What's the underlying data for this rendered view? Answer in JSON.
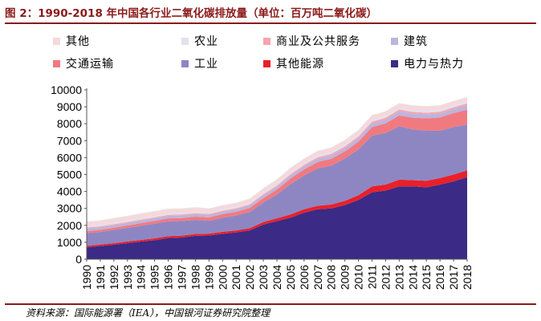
{
  "title": "图 2：1990-2018 年中国各行业二氧化碳排放量（单位：百万吨二氧化碳）",
  "source": "资料来源：国际能源署（IEA），中国银河证券研究院整理",
  "colors": {
    "other": "#f7d7da",
    "agriculture": "#e1e1ef",
    "commercial": "#f6a5ad",
    "building": "#bdb4dc",
    "transport": "#f07a80",
    "industry": "#8e86c3",
    "other_energy": "#e8202a",
    "power_heat": "#3b2a86"
  },
  "legend": [
    {
      "key": "other",
      "label": "其他"
    },
    {
      "key": "agriculture",
      "label": "农业"
    },
    {
      "key": "commercial",
      "label": "商业及公共服务"
    },
    {
      "key": "building",
      "label": "建筑"
    },
    {
      "key": "transport",
      "label": "交通运输"
    },
    {
      "key": "industry",
      "label": "工业"
    },
    {
      "key": "other_energy",
      "label": "其他能源"
    },
    {
      "key": "power_heat",
      "label": "电力与热力"
    }
  ],
  "chart_data": {
    "type": "area",
    "stacked": true,
    "title": "",
    "xlabel": "",
    "ylabel": "",
    "ylim": [
      0,
      10000
    ],
    "yticks": [
      0,
      1000,
      2000,
      3000,
      4000,
      5000,
      6000,
      7000,
      8000,
      9000,
      10000
    ],
    "x": [
      "1990",
      "1991",
      "1992",
      "1993",
      "1994",
      "1995",
      "1996",
      "1997",
      "1998",
      "1999",
      "2000",
      "2001",
      "2002",
      "2003",
      "2004",
      "2005",
      "2006",
      "2007",
      "2008",
      "2009",
      "2010",
      "2011",
      "2012",
      "2013",
      "2014",
      "2015",
      "2016",
      "2017",
      "2018"
    ],
    "series": [
      {
        "key": "power_heat",
        "name": "电力与热力",
        "values": [
          700,
          780,
          860,
          950,
          1040,
          1120,
          1250,
          1280,
          1380,
          1400,
          1500,
          1580,
          1700,
          2050,
          2250,
          2450,
          2750,
          2950,
          3000,
          3200,
          3500,
          3950,
          4050,
          4300,
          4300,
          4250,
          4400,
          4600,
          4850
        ]
      },
      {
        "key": "other_energy",
        "name": "其他能源",
        "values": [
          90,
          90,
          90,
          100,
          100,
          110,
          110,
          110,
          110,
          110,
          120,
          120,
          130,
          150,
          170,
          190,
          200,
          210,
          230,
          250,
          280,
          350,
          360,
          400,
          370,
          380,
          390,
          400,
          400
        ]
      },
      {
        "key": "industry",
        "name": "工业",
        "values": [
          750,
          740,
          780,
          800,
          840,
          870,
          880,
          860,
          830,
          760,
          830,
          880,
          960,
          1150,
          1400,
          1800,
          2000,
          2200,
          2300,
          2500,
          2700,
          3000,
          3050,
          3150,
          3000,
          2950,
          2800,
          2800,
          2700
        ]
      },
      {
        "key": "transport",
        "name": "交通运输",
        "values": [
          120,
          125,
          130,
          140,
          150,
          160,
          170,
          180,
          190,
          200,
          210,
          220,
          240,
          260,
          290,
          320,
          350,
          380,
          400,
          420,
          460,
          500,
          560,
          640,
          690,
          740,
          780,
          830,
          880
        ]
      },
      {
        "key": "building",
        "name": "建筑",
        "values": [
          150,
          150,
          150,
          150,
          150,
          150,
          150,
          150,
          150,
          140,
          140,
          150,
          150,
          160,
          170,
          180,
          190,
          200,
          200,
          200,
          210,
          220,
          230,
          240,
          240,
          240,
          240,
          240,
          260
        ]
      },
      {
        "key": "commercial",
        "name": "商业及公共服务",
        "values": [
          60,
          60,
          60,
          60,
          60,
          60,
          60,
          60,
          60,
          60,
          60,
          60,
          60,
          70,
          70,
          80,
          80,
          80,
          90,
          90,
          100,
          100,
          100,
          110,
          100,
          90,
          100,
          100,
          110
        ]
      },
      {
        "key": "agriculture",
        "name": "农业",
        "values": [
          90,
          90,
          90,
          90,
          90,
          90,
          90,
          90,
          90,
          90,
          90,
          90,
          90,
          90,
          100,
          100,
          100,
          100,
          100,
          100,
          100,
          110,
          110,
          110,
          110,
          110,
          110,
          110,
          110
        ]
      },
      {
        "key": "other",
        "name": "其他",
        "values": [
          250,
          240,
          250,
          250,
          260,
          260,
          260,
          250,
          240,
          220,
          220,
          220,
          230,
          240,
          250,
          260,
          260,
          260,
          260,
          260,
          260,
          260,
          260,
          250,
          260,
          260,
          250,
          250,
          250
        ]
      }
    ]
  }
}
